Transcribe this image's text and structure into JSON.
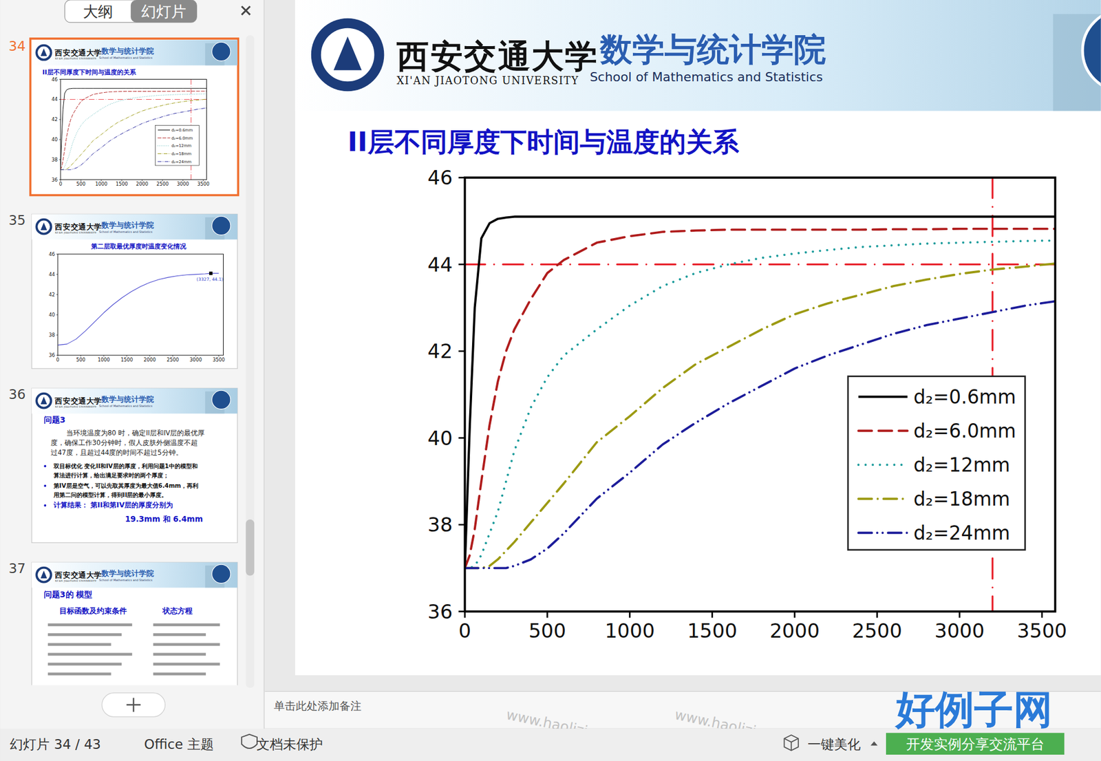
{
  "app": {
    "tabs": [
      "大纲",
      "幻灯片"
    ],
    "slide_numbers": [
      "34",
      "35",
      "36",
      "37"
    ],
    "notes_placeholder": "单击此处添加备注",
    "status": {
      "slide": "幻灯片 34 / 43",
      "theme": "Office 主题",
      "protection": "文档未保护",
      "beautify": "一键美化"
    },
    "watermark": "www.haolizi.com",
    "brand": {
      "name": "好例子网",
      "tagline": "开发实例分享交流平台"
    }
  },
  "header": {
    "university_cn": "西安交通大学",
    "university_en": "XI'AN JIAOTONG UNIVERSITY",
    "school_cn": "数学与统计学院",
    "school_en": "School of Mathematics and Statistics"
  },
  "slides": {
    "s36": {
      "heading": "问题3",
      "paragraph": [
        "当环境温度为80 时，确定II层和IV层的最优厚",
        "度，确保工作30分钟时，假人皮肤外侧温度不超",
        "过47度，且超过44度的时间不超过5分钟。"
      ],
      "bullets": [
        [
          "双目标优化  变化II和IV层的厚度，利用问题1中的模型和",
          "算法进行计算，给出满足要求时的两个厚度；"
        ],
        [
          "第IV层是空气，可以先取其厚度为最大值6.4mm，再利",
          "用第二问的模型计算，得到II层的最小厚度。"
        ]
      ],
      "result": [
        "计算结果：  第II和第IV层的厚度分别为",
        "19.3mm 和 6.4mm"
      ]
    },
    "s37": {
      "heading": "问题3的 模型",
      "left": "目标函数及约束条件",
      "right": "状态方程"
    }
  },
  "chart_data": [
    {
      "type": "line",
      "title": "II层不同厚度下时间与温度的关系",
      "x": [
        0,
        30,
        60,
        100,
        150,
        200,
        250,
        300,
        400,
        500,
        600,
        800,
        1000,
        1200,
        1400,
        1600,
        1800,
        2000,
        2200,
        2400,
        2600,
        2800,
        3000,
        3200,
        3400,
        3580
      ],
      "series": [
        {
          "name": "d₂=0.6mm",
          "color": "#000000",
          "line_style": "solid",
          "values": [
            37,
            40.3,
            43.0,
            44.6,
            44.95,
            45.05,
            45.08,
            45.1,
            45.1,
            45.1,
            45.1,
            45.1,
            45.1,
            45.1,
            45.1,
            45.1,
            45.1,
            45.1,
            45.1,
            45.1,
            45.1,
            45.1,
            45.1,
            45.1,
            45.1,
            45.1
          ]
        },
        {
          "name": "d₂=6.0mm",
          "color": "#b01c1c",
          "line_style": "dash",
          "values": [
            37,
            37.3,
            37.9,
            39.0,
            40.3,
            41.3,
            42.0,
            42.5,
            43.2,
            43.8,
            44.1,
            44.5,
            44.65,
            44.75,
            44.78,
            44.8,
            44.8,
            44.8,
            44.8,
            44.8,
            44.81,
            44.81,
            44.82,
            44.82,
            44.82,
            44.82
          ]
        },
        {
          "name": "d₂=12mm",
          "color": "#1a9b9b",
          "line_style": "dot",
          "values": [
            37,
            37,
            37.05,
            37.3,
            37.8,
            38.3,
            39.0,
            39.7,
            40.7,
            41.4,
            41.9,
            42.5,
            43.05,
            43.5,
            43.8,
            44.0,
            44.15,
            44.25,
            44.33,
            44.4,
            44.44,
            44.48,
            44.5,
            44.52,
            44.54,
            44.55
          ]
        },
        {
          "name": "d₂=18mm",
          "color": "#9c9a12",
          "line_style": "dashdot",
          "values": [
            37,
            37,
            37,
            37,
            37.05,
            37.2,
            37.4,
            37.6,
            38.05,
            38.5,
            38.95,
            39.9,
            40.5,
            41.15,
            41.7,
            42.1,
            42.5,
            42.85,
            43.1,
            43.3,
            43.5,
            43.65,
            43.78,
            43.88,
            43.95,
            44.02
          ]
        },
        {
          "name": "d₂=24mm",
          "color": "#1c1c9a",
          "line_style": "dashdotdot",
          "values": [
            37,
            37,
            37,
            37,
            37,
            37,
            37,
            37.05,
            37.2,
            37.45,
            37.8,
            38.6,
            39.2,
            39.85,
            40.35,
            40.8,
            41.2,
            41.6,
            41.9,
            42.15,
            42.4,
            42.6,
            42.75,
            42.9,
            43.05,
            43.15
          ]
        }
      ],
      "xlim": [
        0,
        3580
      ],
      "ylim": [
        36,
        46
      ],
      "xticks": [
        0,
        500,
        1000,
        1500,
        2000,
        2500,
        3000,
        3500
      ],
      "yticks": [
        36,
        38,
        40,
        42,
        44,
        46
      ],
      "grid": false,
      "legend": "lower right",
      "hlines": [
        44
      ],
      "vlines": [
        3200
      ]
    },
    {
      "type": "line",
      "title": "第二层取最优厚度时温度变化情况",
      "x": [
        0,
        200,
        400,
        600,
        800,
        1000,
        1200,
        1400,
        1600,
        1800,
        2000,
        2200,
        2400,
        2600,
        2800,
        3000,
        3200,
        3327,
        3500
      ],
      "series": [
        {
          "name": "",
          "color": "#4a4ad0",
          "line_style": "solid",
          "values": [
            37,
            37.1,
            37.6,
            38.4,
            39.3,
            40.2,
            41,
            41.7,
            42.3,
            42.8,
            43.2,
            43.5,
            43.7,
            43.85,
            43.95,
            44.0,
            44.05,
            44.1,
            44.1
          ]
        }
      ],
      "xlim": [
        0,
        3600
      ],
      "ylim": [
        36,
        46
      ],
      "xticks": [
        0,
        500,
        1000,
        1500,
        2000,
        2500,
        3000,
        3500
      ],
      "yticks": [
        36,
        38,
        40,
        42,
        44,
        46
      ],
      "grid": false,
      "annotations": [
        {
          "x": 3327,
          "y": 44.1,
          "text": "(3327, 44.1)"
        }
      ]
    }
  ]
}
